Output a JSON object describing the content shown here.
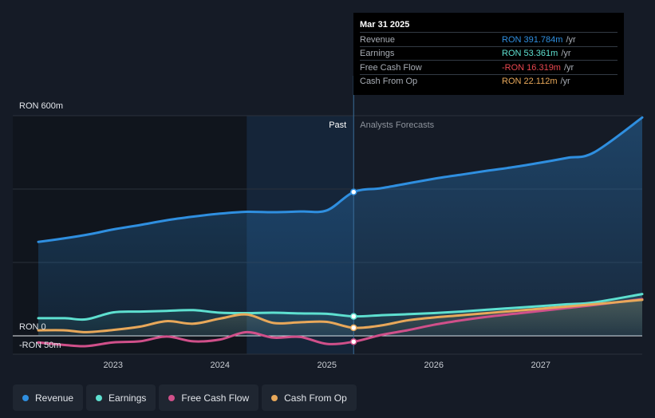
{
  "tooltip": {
    "date": "Mar 31 2025",
    "rows": [
      {
        "label": "Revenue",
        "value": "RON 391.784m",
        "unit": "/yr",
        "color": "#2f8fe0"
      },
      {
        "label": "Earnings",
        "value": "RON 53.361m",
        "unit": "/yr",
        "color": "#5ee0d0"
      },
      {
        "label": "Free Cash Flow",
        "value": "-RON 16.319m",
        "unit": "/yr",
        "color": "#e8474f"
      },
      {
        "label": "Cash From Op",
        "value": "RON 22.112m",
        "unit": "/yr",
        "color": "#e8a85a"
      }
    ]
  },
  "legend": [
    {
      "label": "Revenue",
      "color": "#2f8fe0"
    },
    {
      "label": "Earnings",
      "color": "#5ee0d0"
    },
    {
      "label": "Free Cash Flow",
      "color": "#d0508a"
    },
    {
      "label": "Cash From Op",
      "color": "#e8a85a"
    }
  ],
  "chart_data": {
    "type": "line",
    "y_unit": "RON m",
    "ylim": [
      -50,
      600
    ],
    "y_tick_labels": [
      {
        "value": 600,
        "label": "RON 600m"
      },
      {
        "value": 0,
        "label": "RON 0"
      },
      {
        "value": -50,
        "label": "-RON 50m"
      }
    ],
    "xlim": [
      2022.3,
      2027.95
    ],
    "x_ticks": [
      2023,
      2024,
      2025,
      2026,
      2027
    ],
    "x_tick_labels": [
      "2023",
      "2024",
      "2025",
      "2026",
      "2027"
    ],
    "past_label": "Past",
    "forecast_label": "Analysts Forecasts",
    "past_shade_start": 2024.25,
    "divider_x": 2025.25,
    "series": [
      {
        "name": "Revenue",
        "color": "#2f8fe0",
        "fill": true,
        "points": [
          [
            2022.3,
            256
          ],
          [
            2022.55,
            266
          ],
          [
            2022.8,
            278
          ],
          [
            2023.0,
            290
          ],
          [
            2023.25,
            302
          ],
          [
            2023.5,
            315
          ],
          [
            2023.75,
            325
          ],
          [
            2024.0,
            333
          ],
          [
            2024.25,
            338
          ],
          [
            2024.5,
            337
          ],
          [
            2024.75,
            339
          ],
          [
            2025.0,
            342
          ],
          [
            2025.25,
            392
          ],
          [
            2025.5,
            402
          ],
          [
            2025.75,
            415
          ],
          [
            2026.0,
            428
          ],
          [
            2026.25,
            439
          ],
          [
            2026.5,
            450
          ],
          [
            2026.75,
            460
          ],
          [
            2027.0,
            472
          ],
          [
            2027.25,
            485
          ],
          [
            2027.5,
            500
          ],
          [
            2027.95,
            595
          ]
        ]
      },
      {
        "name": "Earnings",
        "color": "#5ee0d0",
        "fill": true,
        "points": [
          [
            2022.3,
            48
          ],
          [
            2022.55,
            48
          ],
          [
            2022.75,
            45
          ],
          [
            2023.0,
            64
          ],
          [
            2023.25,
            66
          ],
          [
            2023.5,
            68
          ],
          [
            2023.75,
            70
          ],
          [
            2024.0,
            63
          ],
          [
            2024.25,
            62
          ],
          [
            2024.5,
            63
          ],
          [
            2024.75,
            61
          ],
          [
            2025.0,
            60
          ],
          [
            2025.25,
            53
          ],
          [
            2025.5,
            56
          ],
          [
            2025.75,
            59
          ],
          [
            2026.0,
            62
          ],
          [
            2026.25,
            66
          ],
          [
            2026.5,
            71
          ],
          [
            2026.75,
            76
          ],
          [
            2027.0,
            81
          ],
          [
            2027.25,
            86
          ],
          [
            2027.5,
            91
          ],
          [
            2027.95,
            114
          ]
        ]
      },
      {
        "name": "Free Cash Flow",
        "color": "#d0508a",
        "fill": false,
        "points": [
          [
            2022.3,
            -18
          ],
          [
            2022.55,
            -25
          ],
          [
            2022.75,
            -28
          ],
          [
            2023.0,
            -18
          ],
          [
            2023.25,
            -15
          ],
          [
            2023.5,
            -2
          ],
          [
            2023.75,
            -15
          ],
          [
            2024.0,
            -10
          ],
          [
            2024.25,
            10
          ],
          [
            2024.5,
            -5
          ],
          [
            2024.75,
            -3
          ],
          [
            2025.0,
            -22
          ],
          [
            2025.25,
            -16
          ],
          [
            2025.5,
            2
          ],
          [
            2025.75,
            15
          ],
          [
            2026.0,
            30
          ],
          [
            2026.25,
            42
          ],
          [
            2026.5,
            52
          ],
          [
            2026.75,
            60
          ],
          [
            2027.0,
            68
          ],
          [
            2027.25,
            76
          ],
          [
            2027.5,
            84
          ],
          [
            2027.95,
            100
          ]
        ]
      },
      {
        "name": "Cash From Op",
        "color": "#e8a85a",
        "fill": true,
        "points": [
          [
            2022.3,
            15
          ],
          [
            2022.55,
            15
          ],
          [
            2022.75,
            10
          ],
          [
            2023.0,
            16
          ],
          [
            2023.25,
            25
          ],
          [
            2023.5,
            40
          ],
          [
            2023.75,
            33
          ],
          [
            2024.0,
            47
          ],
          [
            2024.25,
            58
          ],
          [
            2024.5,
            35
          ],
          [
            2024.75,
            37
          ],
          [
            2025.0,
            38
          ],
          [
            2025.25,
            22
          ],
          [
            2025.5,
            28
          ],
          [
            2025.75,
            42
          ],
          [
            2026.0,
            50
          ],
          [
            2026.25,
            56
          ],
          [
            2026.5,
            62
          ],
          [
            2026.75,
            68
          ],
          [
            2027.0,
            74
          ],
          [
            2027.25,
            80
          ],
          [
            2027.5,
            86
          ],
          [
            2027.95,
            98
          ]
        ]
      }
    ]
  }
}
